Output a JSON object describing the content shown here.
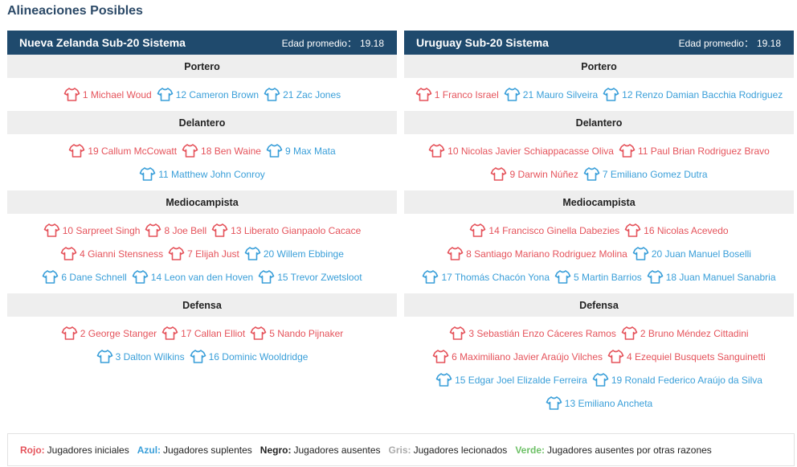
{
  "title": "Alineaciones Posibles",
  "colors": {
    "header_bg": "#1f4a6d",
    "starter": "#e5535b",
    "substitute": "#3a9fd9",
    "absent": "#222222",
    "injured": "#aaaaaa",
    "other": "#6dc066"
  },
  "teams": [
    {
      "name": "Nueva Zelanda Sub-20 Sistema",
      "avg_label": "Edad promedio：",
      "avg_value": "19.18",
      "positions": [
        {
          "label": "Portero",
          "rows": [
            [
              {
                "text": "1 Michael Woud",
                "status": "red",
                "icon": "shirt-icon"
              },
              {
                "text": "12 Cameron Brown",
                "status": "blue",
                "icon": "shirt-icon"
              },
              {
                "text": "21 Zac Jones",
                "status": "blue",
                "icon": "shirt-icon"
              }
            ]
          ]
        },
        {
          "label": "Delantero",
          "rows": [
            [
              {
                "text": "19 Callum McCowatt",
                "status": "red",
                "icon": "shirt-icon"
              },
              {
                "text": "18 Ben Waine",
                "status": "red",
                "icon": "shirt-icon"
              },
              {
                "text": "9 Max Mata",
                "status": "blue",
                "icon": "shirt-icon"
              }
            ],
            [
              {
                "text": "11 Matthew John Conroy",
                "status": "blue",
                "icon": "shirt-icon"
              }
            ]
          ]
        },
        {
          "label": "Mediocampista",
          "rows": [
            [
              {
                "text": "10 Sarpreet Singh",
                "status": "red",
                "icon": "shirt-icon"
              },
              {
                "text": "8 Joe Bell",
                "status": "red",
                "icon": "shirt-icon"
              },
              {
                "text": "13 Liberato Gianpaolo Cacace",
                "status": "red",
                "icon": "shirt-icon"
              }
            ],
            [
              {
                "text": "4 Gianni Stensness",
                "status": "red",
                "icon": "shirt-icon"
              },
              {
                "text": "7 Elijah Just",
                "status": "red",
                "icon": "shirt-icon"
              },
              {
                "text": "20 Willem Ebbinge",
                "status": "blue",
                "icon": "shirt-icon"
              }
            ],
            [
              {
                "text": "6 Dane Schnell",
                "status": "blue",
                "icon": "shirt-icon"
              },
              {
                "text": "14 Leon van den Hoven",
                "status": "blue",
                "icon": "shirt-icon"
              },
              {
                "text": "15 Trevor Zwetsloot",
                "status": "blue",
                "icon": "shirt-icon"
              }
            ]
          ]
        },
        {
          "label": "Defensa",
          "rows": [
            [
              {
                "text": "2 George Stanger",
                "status": "red",
                "icon": "shirt-icon"
              },
              {
                "text": "17 Callan Elliot",
                "status": "red",
                "icon": "shirt-icon"
              },
              {
                "text": "5 Nando Pijnaker",
                "status": "red",
                "icon": "shirt-icon"
              }
            ],
            [
              {
                "text": "3 Dalton Wilkins",
                "status": "blue",
                "icon": "shirt-icon"
              },
              {
                "text": "16 Dominic Wooldridge",
                "status": "blue",
                "icon": "shirt-icon"
              }
            ]
          ]
        }
      ]
    },
    {
      "name": "Uruguay Sub-20 Sistema",
      "avg_label": "Edad promedio：",
      "avg_value": "19.18",
      "positions": [
        {
          "label": "Portero",
          "rows": [
            [
              {
                "text": "1 Franco Israel",
                "status": "red",
                "icon": "shirt-icon"
              },
              {
                "text": "21 Mauro Silveira",
                "status": "blue",
                "icon": "shirt-icon"
              },
              {
                "text": "12 Renzo Damian Bacchia Rodriguez",
                "status": "blue",
                "icon": "shirt-icon"
              }
            ]
          ]
        },
        {
          "label": "Delantero",
          "rows": [
            [
              {
                "text": "10 Nicolas Javier Schiappacasse Oliva",
                "status": "red",
                "icon": "shirt-icon"
              },
              {
                "text": "11 Paul Brian Rodriguez Bravo",
                "status": "red",
                "icon": "shirt-icon"
              }
            ],
            [
              {
                "text": "9 Darwin Núñez",
                "status": "red",
                "icon": "shirt-icon"
              },
              {
                "text": "7 Emiliano Gomez Dutra",
                "status": "blue",
                "icon": "shirt-icon"
              }
            ]
          ]
        },
        {
          "label": "Mediocampista",
          "rows": [
            [
              {
                "text": "14 Francisco Ginella Dabezies",
                "status": "red",
                "icon": "shirt-icon"
              },
              {
                "text": "16 Nicolas Acevedo",
                "status": "red",
                "icon": "shirt-icon"
              }
            ],
            [
              {
                "text": "8 Santiago Mariano Rodriguez Molina",
                "status": "red",
                "icon": "shirt-icon"
              },
              {
                "text": "20 Juan Manuel Boselli",
                "status": "blue",
                "icon": "shirt-icon"
              }
            ],
            [
              {
                "text": "17 Thomás Chacón Yona",
                "status": "blue",
                "icon": "shirt-icon"
              },
              {
                "text": "5 Martin Barrios",
                "status": "blue",
                "icon": "shirt-icon"
              },
              {
                "text": "18 Juan Manuel Sanabria",
                "status": "blue",
                "icon": "shirt-icon"
              }
            ]
          ]
        },
        {
          "label": "Defensa",
          "rows": [
            [
              {
                "text": "3 Sebastián Enzo Cáceres Ramos",
                "status": "red",
                "icon": "shirt-icon"
              },
              {
                "text": "2 Bruno Méndez Cittadini",
                "status": "red",
                "icon": "shirt-icon"
              }
            ],
            [
              {
                "text": "6 Maximiliano Javier Araújo Vilches",
                "status": "red",
                "icon": "shirt-icon"
              },
              {
                "text": "4 Ezequiel Busquets Sanguinetti",
                "status": "red",
                "icon": "shirt-icon"
              }
            ],
            [
              {
                "text": "15 Edgar Joel Elizalde Ferreira",
                "status": "blue",
                "icon": "shirt-icon"
              },
              {
                "text": "19 Ronald Federico Araújo da Silva",
                "status": "blue",
                "icon": "shirt-icon"
              }
            ],
            [
              {
                "text": "13 Emiliano Ancheta",
                "status": "blue",
                "icon": "shirt-icon"
              }
            ]
          ]
        }
      ]
    }
  ],
  "legend": [
    {
      "key": "Rojo:",
      "desc": "Jugadores iniciales",
      "color": "#e5535b"
    },
    {
      "key": "Azul:",
      "desc": "Jugadores suplentes",
      "color": "#3a9fd9"
    },
    {
      "key": "Negro:",
      "desc": "Jugadores ausentes",
      "color": "#222222"
    },
    {
      "key": "Gris:",
      "desc": "Jugadores lecionados",
      "color": "#aaaaaa"
    },
    {
      "key": "Verde:",
      "desc": "Jugadores ausentes por otras razones",
      "color": "#6dc066"
    }
  ]
}
